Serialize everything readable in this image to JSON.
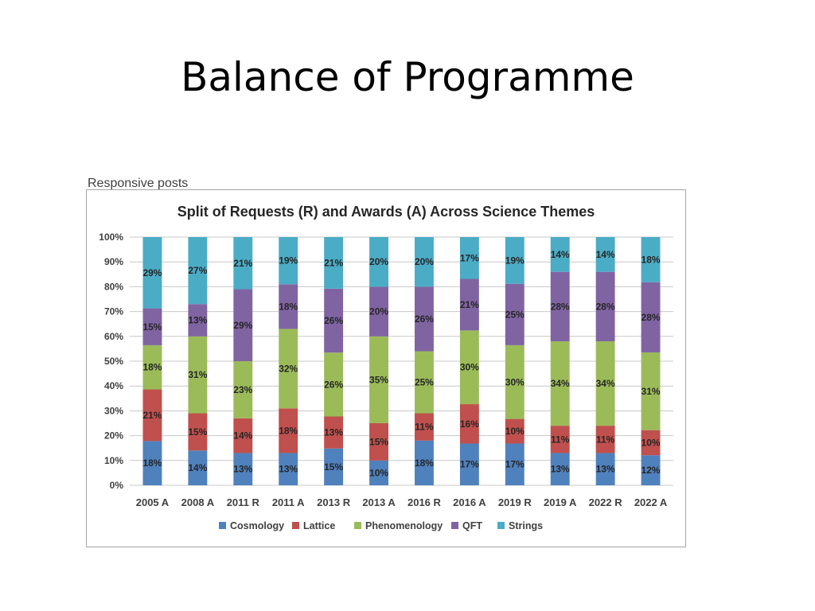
{
  "slide": {
    "title": "Balance of Programme",
    "subtitle": "Responsive posts"
  },
  "chart_data": {
    "type": "bar",
    "stacked": true,
    "percent": true,
    "title": "Split of Requests (R) and Awards (A) Across Science Themes",
    "xlabel": "",
    "ylabel": "",
    "ylim": [
      0,
      100
    ],
    "yticks": [
      "0%",
      "10%",
      "20%",
      "30%",
      "40%",
      "50%",
      "60%",
      "70%",
      "80%",
      "90%",
      "100%"
    ],
    "grid": true,
    "legend_position": "bottom",
    "categories": [
      "2005 A",
      "2008 A",
      "2011 R",
      "2011 A",
      "2013 R",
      "2013 A",
      "2016 R",
      "2016 A",
      "2019 R",
      "2019 A",
      "2022 R",
      "2022 A"
    ],
    "series": [
      {
        "name": "Cosmology",
        "color": "#4f81bd",
        "values": [
          18,
          14,
          13,
          13,
          15,
          10,
          18,
          17,
          17,
          13,
          13,
          12
        ],
        "labels": [
          "18%",
          "14%",
          "13%",
          "13%",
          "15%",
          "10%",
          "18%",
          "17%",
          "17%",
          "13%",
          "13%",
          "12%"
        ]
      },
      {
        "name": "Lattice",
        "color": "#c0504d",
        "values": [
          21,
          15,
          14,
          18,
          13,
          15,
          11,
          16,
          10,
          11,
          11,
          10
        ],
        "labels": [
          "21%",
          "15%",
          "14%",
          "18%",
          "13%",
          "15%",
          "11%",
          "16%",
          "10%",
          "11%",
          "11%",
          "10%"
        ]
      },
      {
        "name": "Phenomenology",
        "color": "#9bbb59",
        "values": [
          18,
          31,
          23,
          32,
          26,
          35,
          25,
          30,
          30,
          34,
          34,
          31
        ],
        "labels": [
          "18%",
          "31%",
          "23%",
          "32%",
          "26%",
          "35%",
          "25%",
          "30%",
          "30%",
          "34%",
          "34%",
          "31%"
        ]
      },
      {
        "name": "QFT",
        "color": "#8064a2",
        "values": [
          15,
          13,
          29,
          18,
          26,
          20,
          26,
          21,
          25,
          28,
          28,
          28
        ],
        "labels": [
          "15%",
          "13%",
          "29%",
          "18%",
          "26%",
          "20%",
          "26%",
          "21%",
          "25%",
          "28%",
          "28%",
          "28%"
        ]
      },
      {
        "name": "Strings",
        "color": "#4bacc6",
        "values": [
          29,
          27,
          21,
          19,
          21,
          20,
          20,
          17,
          19,
          14,
          14,
          18
        ],
        "labels": [
          "29%",
          "27%",
          "21%",
          "19%",
          "21%",
          "20%",
          "20%",
          "17%",
          "19%",
          "14%",
          "14%",
          "18%"
        ]
      }
    ]
  }
}
